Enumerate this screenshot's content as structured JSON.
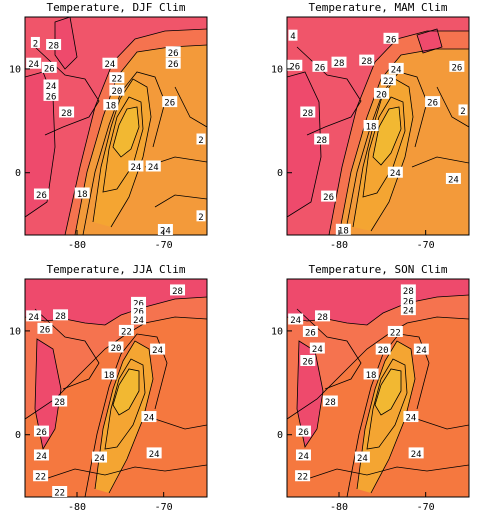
{
  "chart_data": [
    {
      "type": "contour",
      "title": "Temperature, DJF Clim",
      "xlabel": "",
      "ylabel": "",
      "xlim": [
        -86,
        -65
      ],
      "ylim": [
        -6,
        15
      ],
      "x_ticks": [
        "-80",
        "-70"
      ],
      "y_ticks": [
        "10",
        "0"
      ],
      "contour_levels": [
        18,
        20,
        22,
        24,
        26,
        28
      ],
      "contour_labels": [
        {
          "v": "2",
          "x": -84.8,
          "y": 12.5
        },
        {
          "v": "28",
          "x": -82.7,
          "y": 12.3
        },
        {
          "v": "24",
          "x": -85.0,
          "y": 10.5
        },
        {
          "v": "26",
          "x": -83.2,
          "y": 10.1
        },
        {
          "v": "24",
          "x": -83.0,
          "y": 8.4
        },
        {
          "v": "26",
          "x": -83.0,
          "y": 7.4
        },
        {
          "v": "28",
          "x": -81.2,
          "y": 5.8
        },
        {
          "v": "24",
          "x": -76.2,
          "y": 10.5
        },
        {
          "v": "26",
          "x": -68.9,
          "y": 11.6
        },
        {
          "v": "26",
          "x": -68.9,
          "y": 10.5
        },
        {
          "v": "22",
          "x": -75.4,
          "y": 9.1
        },
        {
          "v": "20",
          "x": -75.4,
          "y": 7.9
        },
        {
          "v": "18",
          "x": -76.1,
          "y": 6.5
        },
        {
          "v": "26",
          "x": -69.3,
          "y": 6.8
        },
        {
          "v": "2",
          "x": -65.6,
          "y": 3.2
        },
        {
          "v": "24",
          "x": -73.2,
          "y": 0.6
        },
        {
          "v": "24",
          "x": -71.2,
          "y": 0.6
        },
        {
          "v": "26",
          "x": -84.1,
          "y": -2.1
        },
        {
          "v": "18",
          "x": -79.4,
          "y": -2.0
        },
        {
          "v": "2",
          "x": -65.6,
          "y": -4.2
        },
        {
          "v": "24",
          "x": -69.8,
          "y": -5.6
        }
      ],
      "colors": {
        "warm": "#f0556a",
        "mid": "#f5734f",
        "cool": "#f39a3a",
        "core": "#f2b832"
      }
    },
    {
      "type": "contour",
      "title": "Temperature, MAM Clim",
      "xlabel": "",
      "ylabel": "",
      "xlim": [
        -86,
        -65
      ],
      "ylim": [
        -6,
        15
      ],
      "x_ticks": [
        "-80",
        "-70"
      ],
      "y_ticks": [
        "10",
        "0"
      ],
      "contour_levels": [
        18,
        20,
        22,
        24,
        26,
        28
      ],
      "contour_labels": [
        {
          "v": "4",
          "x": -85.4,
          "y": 13.2
        },
        {
          "v": "26",
          "x": -74.0,
          "y": 12.9
        },
        {
          "v": "26",
          "x": -85.1,
          "y": 10.3
        },
        {
          "v": "26",
          "x": -82.2,
          "y": 10.2
        },
        {
          "v": "28",
          "x": -80.0,
          "y": 10.6
        },
        {
          "v": "28",
          "x": -76.8,
          "y": 10.8
        },
        {
          "v": "24",
          "x": -73.4,
          "y": 10.0
        },
        {
          "v": "22",
          "x": -74.3,
          "y": 8.9
        },
        {
          "v": "20",
          "x": -75.1,
          "y": 7.6
        },
        {
          "v": "26",
          "x": -66.4,
          "y": 10.2
        },
        {
          "v": "26",
          "x": -69.2,
          "y": 6.8
        },
        {
          "v": "2",
          "x": -65.5,
          "y": 6.0
        },
        {
          "v": "28",
          "x": -83.6,
          "y": 5.8
        },
        {
          "v": "18",
          "x": -76.3,
          "y": 4.5
        },
        {
          "v": "28",
          "x": -82.0,
          "y": 3.2
        },
        {
          "v": "24",
          "x": -73.5,
          "y": 0.0
        },
        {
          "v": "24",
          "x": -66.8,
          "y": -0.6
        },
        {
          "v": "26",
          "x": -81.2,
          "y": -2.3
        },
        {
          "v": "18",
          "x": -79.5,
          "y": -5.5
        }
      ],
      "colors": {
        "warm": "#f0556a",
        "mid": "#f5734f",
        "cool": "#f39a3a",
        "core": "#f2b832"
      }
    },
    {
      "type": "contour",
      "title": "Temperature, JJA Clim",
      "xlabel": "",
      "ylabel": "",
      "xlim": [
        -86,
        -65
      ],
      "ylim": [
        -6,
        15
      ],
      "x_ticks": [
        "-80",
        "-70"
      ],
      "y_ticks": [
        "10",
        "0"
      ],
      "contour_labels": [
        {
          "v": "28",
          "x": -68.4,
          "y": 13.9
        },
        {
          "v": "26",
          "x": -72.9,
          "y": 12.7
        },
        {
          "v": "26",
          "x": -72.9,
          "y": 11.9
        },
        {
          "v": "24",
          "x": -72.9,
          "y": 11.1
        },
        {
          "v": "24",
          "x": -85.0,
          "y": 11.4
        },
        {
          "v": "28",
          "x": -81.9,
          "y": 11.5
        },
        {
          "v": "26",
          "x": -83.7,
          "y": 10.2
        },
        {
          "v": "22",
          "x": -74.3,
          "y": 10.0
        },
        {
          "v": "20",
          "x": -75.5,
          "y": 8.4
        },
        {
          "v": "24",
          "x": -70.7,
          "y": 8.2
        },
        {
          "v": "18",
          "x": -76.3,
          "y": 5.8
        },
        {
          "v": "28",
          "x": -82.0,
          "y": 3.2
        },
        {
          "v": "24",
          "x": -71.7,
          "y": 1.7
        },
        {
          "v": "26",
          "x": -84.1,
          "y": 0.3
        },
        {
          "v": "24",
          "x": -84.1,
          "y": -2.0
        },
        {
          "v": "24",
          "x": -77.4,
          "y": -2.2
        },
        {
          "v": "24",
          "x": -71.1,
          "y": -1.8
        },
        {
          "v": "22",
          "x": -84.2,
          "y": -4.0
        },
        {
          "v": "22",
          "x": -82.0,
          "y": -5.8
        }
      ],
      "colors": {
        "warm": "#f0556a",
        "mid": "#f5734f",
        "cool": "#f39a3a",
        "core": "#f2b832"
      }
    },
    {
      "type": "contour",
      "title": "Temperature, SON Clim",
      "xlabel": "",
      "ylabel": "",
      "xlim": [
        -86,
        -65
      ],
      "ylim": [
        -6,
        15
      ],
      "x_ticks": [
        "-80",
        "-70"
      ],
      "y_ticks": [
        "10",
        "0"
      ],
      "contour_labels": [
        {
          "v": "28",
          "x": -72.0,
          "y": 13.9
        },
        {
          "v": "26",
          "x": -72.0,
          "y": 12.9
        },
        {
          "v": "24",
          "x": -72.0,
          "y": 12.0
        },
        {
          "v": "24",
          "x": -85.0,
          "y": 11.1
        },
        {
          "v": "28",
          "x": -81.9,
          "y": 11.4
        },
        {
          "v": "26",
          "x": -83.3,
          "y": 9.9
        },
        {
          "v": "22",
          "x": -73.5,
          "y": 9.9
        },
        {
          "v": "24",
          "x": -82.5,
          "y": 8.3
        },
        {
          "v": "20",
          "x": -74.9,
          "y": 8.2
        },
        {
          "v": "24",
          "x": -70.5,
          "y": 8.2
        },
        {
          "v": "26",
          "x": -83.6,
          "y": 7.1
        },
        {
          "v": "18",
          "x": -76.3,
          "y": 5.8
        },
        {
          "v": "28",
          "x": -81.0,
          "y": 3.2
        },
        {
          "v": "24",
          "x": -71.7,
          "y": 1.7
        },
        {
          "v": "26",
          "x": -84.1,
          "y": 0.3
        },
        {
          "v": "24",
          "x": -84.1,
          "y": -2.0
        },
        {
          "v": "24",
          "x": -77.3,
          "y": -2.2
        },
        {
          "v": "24",
          "x": -71.1,
          "y": -1.8
        },
        {
          "v": "22",
          "x": -84.2,
          "y": -4.0
        }
      ],
      "colors": {
        "warm": "#f0556a",
        "mid": "#f5734f",
        "cool": "#f39a3a",
        "core": "#f2b832"
      }
    }
  ]
}
